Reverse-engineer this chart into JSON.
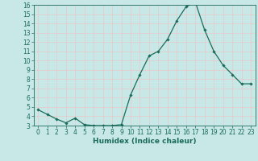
{
  "xlabel": "Humidex (Indice chaleur)",
  "x_values": [
    0,
    1,
    2,
    3,
    4,
    5,
    6,
    7,
    8,
    9,
    10,
    11,
    12,
    13,
    14,
    15,
    16,
    17,
    18,
    19,
    20,
    21,
    22,
    23
  ],
  "y_values": [
    4.7,
    4.2,
    3.7,
    3.3,
    3.8,
    3.1,
    3.0,
    3.0,
    3.0,
    3.1,
    6.3,
    8.5,
    10.5,
    11.0,
    12.3,
    14.3,
    15.8,
    16.3,
    13.3,
    11.0,
    9.5,
    8.5,
    7.5,
    7.5
  ],
  "line_color": "#1a6b5a",
  "marker": "D",
  "marker_size": 1.8,
  "bg_color": "#c8e8e8",
  "grid_color": "#e8c8c8",
  "ylim": [
    3,
    16
  ],
  "xlim": [
    -0.5,
    23.5
  ],
  "yticks": [
    3,
    4,
    5,
    6,
    7,
    8,
    9,
    10,
    11,
    12,
    13,
    14,
    15,
    16
  ],
  "xticks": [
    0,
    1,
    2,
    3,
    4,
    5,
    6,
    7,
    8,
    9,
    10,
    11,
    12,
    13,
    14,
    15,
    16,
    17,
    18,
    19,
    20,
    21,
    22,
    23
  ],
  "tick_color": "#1a6b5a",
  "label_color": "#1a6b5a",
  "tick_fontsize": 5.5,
  "xlabel_fontsize": 6.5
}
